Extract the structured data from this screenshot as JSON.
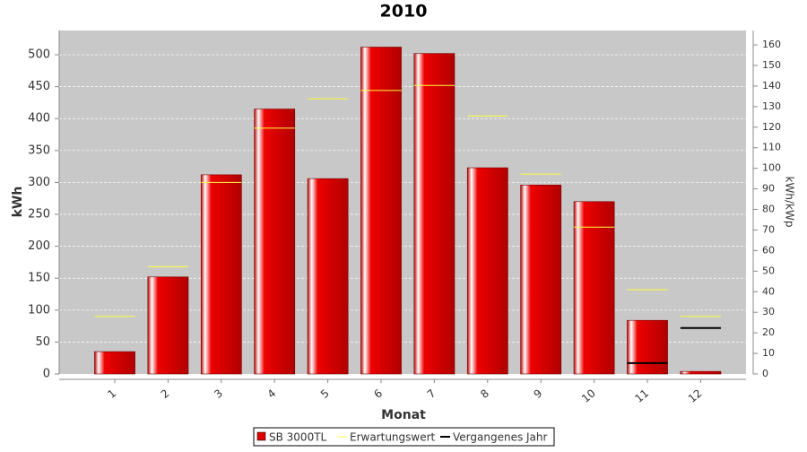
{
  "chart_data": {
    "type": "bar",
    "title": "2010",
    "x_label": "Monat",
    "y_label": "kWh",
    "y2_label": "kWh/kWp",
    "categories": [
      "1",
      "2",
      "3",
      "4",
      "5",
      "6",
      "7",
      "8",
      "9",
      "10",
      "11",
      "12"
    ],
    "series": [
      {
        "name": "SB 3000TL",
        "type": "bar",
        "color": "#e00000",
        "values": [
          35,
          152,
          312,
          415,
          306,
          512,
          502,
          323,
          296,
          270,
          84,
          4
        ]
      },
      {
        "name": "Erwartungswert",
        "type": "step",
        "color": "#ffff40",
        "values": [
          90,
          168,
          300,
          385,
          431,
          444,
          452,
          404,
          313,
          230,
          132,
          90
        ]
      },
      {
        "name": "Vergangenes Jahr",
        "type": "step",
        "color": "#000000",
        "values": [
          null,
          null,
          null,
          null,
          null,
          null,
          null,
          null,
          null,
          null,
          17,
          72
        ]
      }
    ],
    "ylim": [
      0,
      538
    ],
    "yticks": [
      0,
      50,
      100,
      150,
      200,
      250,
      300,
      350,
      400,
      450,
      500
    ],
    "y2lim": [
      0,
      167
    ],
    "y2ticks": [
      0,
      10,
      20,
      30,
      40,
      50,
      60,
      70,
      80,
      90,
      100,
      110,
      120,
      130,
      140,
      150,
      160
    ],
    "grid": true
  }
}
